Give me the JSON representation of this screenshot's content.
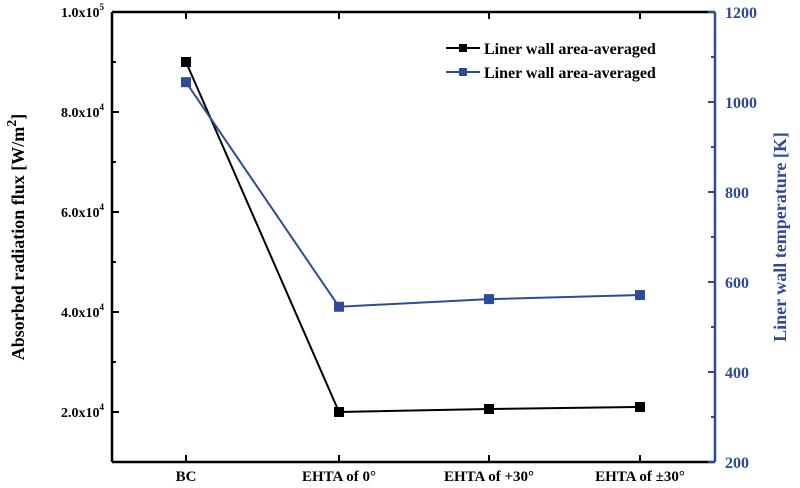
{
  "chart_data": {
    "type": "line",
    "categories": [
      "BC",
      "EHTA of 0°",
      "EHTA of +30°",
      "EHTA of ±30°"
    ],
    "left_axis": {
      "label": "Absorbed radiation flux [W/m",
      "label_sup": "2",
      "label_end": "]",
      "ylim": [
        10000,
        100000
      ],
      "ticks": [
        {
          "value": 20000,
          "mantissa": "2.0x10",
          "exp": "4"
        },
        {
          "value": 40000,
          "mantissa": "4.0x10",
          "exp": "4"
        },
        {
          "value": 60000,
          "mantissa": "6.0x10",
          "exp": "4"
        },
        {
          "value": 80000,
          "mantissa": "8.0x10",
          "exp": "4"
        },
        {
          "value": 100000,
          "mantissa": "1.0x10",
          "exp": "5"
        }
      ],
      "color": "#000000"
    },
    "right_axis": {
      "label": "Liner wall temperature [K]",
      "ylim": [
        200,
        1200
      ],
      "ticks": [
        "200",
        "400",
        "600",
        "800",
        "1000",
        "1200"
      ],
      "color": "#2e4a9a"
    },
    "series": [
      {
        "name": "Liner wall area-averaged",
        "axis": "left",
        "color": "#000000",
        "values": [
          90000,
          20000,
          20600,
          21000
        ]
      },
      {
        "name": "Liner wall area-averaged",
        "axis": "right",
        "color": "#2e4a9a",
        "values": [
          1044,
          545,
          562,
          571
        ]
      }
    ],
    "legend": "top-right",
    "grid": false
  }
}
